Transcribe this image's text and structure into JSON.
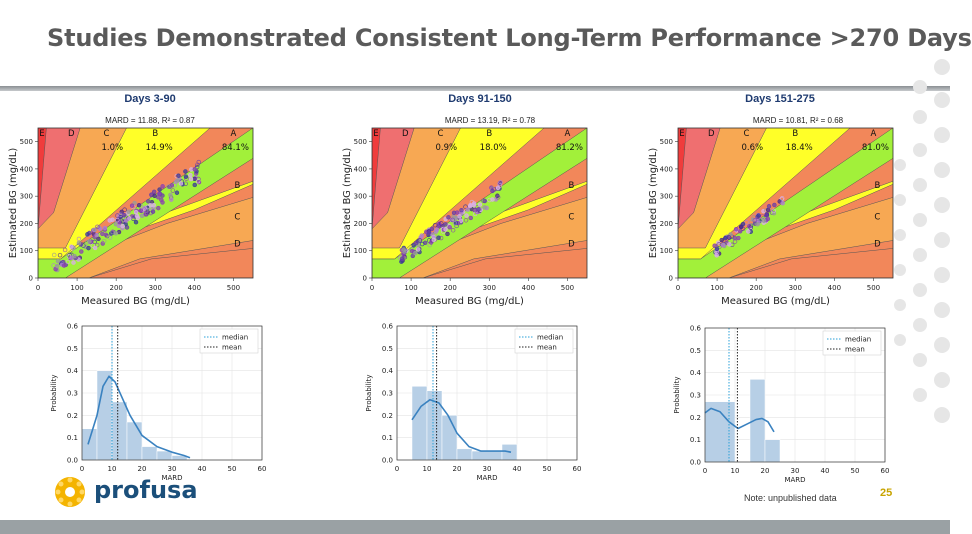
{
  "slide": {
    "title": "Studies Demonstrated Consistent Long-Term Performance >270 Days",
    "note": "Note: unpublished data",
    "page_number": "25",
    "logo_text": "profusa",
    "colors": {
      "title": "#5a5a5a",
      "panel_title": "#1f3b70",
      "page_number": "#c8a400",
      "logo": "#1b4f7a"
    }
  },
  "chart_data": [
    {
      "type": "scatter",
      "title": "Days 3-90",
      "subtitle": "MARD = 11.88, R² = 0.87",
      "xlabel": "Measured BG (mg/dL)",
      "ylabel": "Estimated BG (mg/dL)",
      "xlim": [
        0,
        550
      ],
      "ylim": [
        0,
        550
      ],
      "xticks": [
        0,
        100,
        200,
        300,
        400,
        500
      ],
      "yticks": [
        0,
        100,
        200,
        300,
        400,
        500
      ],
      "zones": {
        "labels_left": [
          "E",
          "D",
          "C",
          "B",
          "A"
        ],
        "labels_right": [
          "B",
          "C",
          "D"
        ],
        "percent": {
          "C": "1.0%",
          "B": "14.9%",
          "A": "84.1%"
        }
      },
      "point_spread": {
        "x_range": [
          40,
          420
        ],
        "slope": 0.92,
        "noise": 38,
        "count": 190
      }
    },
    {
      "type": "scatter",
      "title": "Days 91-150",
      "subtitle": "MARD = 13.19, R² = 0.78",
      "xlabel": "Measured BG (mg/dL)",
      "ylabel": "Estimated BG (mg/dL)",
      "xlim": [
        0,
        550
      ],
      "ylim": [
        0,
        550
      ],
      "xticks": [
        0,
        100,
        200,
        300,
        400,
        500
      ],
      "yticks": [
        0,
        100,
        200,
        300,
        400,
        500
      ],
      "zones": {
        "labels_left": [
          "E",
          "D",
          "C",
          "B",
          "A"
        ],
        "labels_right": [
          "B",
          "C",
          "D"
        ],
        "percent": {
          "C": "0.9%",
          "B": "18.0%",
          "A": "81.2%"
        }
      },
      "point_spread": {
        "x_range": [
          70,
          330
        ],
        "slope": 0.95,
        "noise": 32,
        "count": 130
      }
    },
    {
      "type": "scatter",
      "title": "Days 151-275",
      "subtitle": "MARD = 10.81, R² = 0.68",
      "xlabel": "Measured BG (mg/dL)",
      "ylabel": "Estimated BG (mg/dL)",
      "xlim": [
        0,
        550
      ],
      "ylim": [
        0,
        550
      ],
      "xticks": [
        0,
        100,
        200,
        300,
        400,
        500
      ],
      "yticks": [
        0,
        100,
        200,
        300,
        400,
        500
      ],
      "zones": {
        "labels_left": [
          "E",
          "D",
          "C",
          "B",
          "A"
        ],
        "labels_right": [
          "B",
          "C",
          "D"
        ],
        "percent": {
          "C": "0.6%",
          "B": "18.4%",
          "A": "81.0%"
        }
      },
      "point_spread": {
        "x_range": [
          90,
          270
        ],
        "slope": 0.98,
        "noise": 25,
        "count": 80
      }
    },
    {
      "type": "bar",
      "xlabel": "MARD",
      "ylabel": "Probability",
      "xlim": [
        0,
        60
      ],
      "ylim": [
        0,
        0.6
      ],
      "xticks": [
        0,
        10,
        20,
        30,
        40,
        50,
        60
      ],
      "yticks": [
        0.0,
        0.1,
        0.2,
        0.3,
        0.4,
        0.5,
        0.6
      ],
      "bins": [
        [
          0,
          5,
          0.14
        ],
        [
          5,
          10,
          0.4
        ],
        [
          10,
          15,
          0.26
        ],
        [
          15,
          20,
          0.17
        ],
        [
          20,
          25,
          0.06
        ],
        [
          25,
          30,
          0.04
        ],
        [
          30,
          35,
          0.02
        ],
        [
          35,
          40,
          0.0
        ]
      ],
      "kde": [
        [
          2,
          0.07
        ],
        [
          5,
          0.2
        ],
        [
          7,
          0.33
        ],
        [
          9,
          0.375
        ],
        [
          11,
          0.35
        ],
        [
          13,
          0.29
        ],
        [
          16,
          0.2
        ],
        [
          20,
          0.11
        ],
        [
          25,
          0.06
        ],
        [
          30,
          0.035
        ],
        [
          34,
          0.02
        ],
        [
          36,
          0.01
        ]
      ],
      "median": 10,
      "mean": 11.9,
      "legend": [
        "median",
        "mean"
      ]
    },
    {
      "type": "bar",
      "xlabel": "MARD",
      "ylabel": "Probability",
      "xlim": [
        0,
        60
      ],
      "ylim": [
        0,
        0.6
      ],
      "xticks": [
        0,
        10,
        20,
        30,
        40,
        50,
        60
      ],
      "yticks": [
        0.0,
        0.1,
        0.2,
        0.3,
        0.4,
        0.5,
        0.6
      ],
      "bins": [
        [
          5,
          10,
          0.33
        ],
        [
          10,
          15,
          0.31
        ],
        [
          15,
          20,
          0.2
        ],
        [
          20,
          25,
          0.05
        ],
        [
          25,
          35,
          0.04
        ],
        [
          35,
          40,
          0.07
        ]
      ],
      "kde": [
        [
          5,
          0.18
        ],
        [
          8,
          0.24
        ],
        [
          11,
          0.27
        ],
        [
          14,
          0.255
        ],
        [
          17,
          0.2
        ],
        [
          20,
          0.12
        ],
        [
          24,
          0.06
        ],
        [
          28,
          0.04
        ],
        [
          32,
          0.04
        ],
        [
          36,
          0.04
        ],
        [
          38,
          0.035
        ]
      ],
      "median": 12,
      "mean": 13.2,
      "legend": [
        "median",
        "mean"
      ]
    },
    {
      "type": "bar",
      "xlabel": "MARD",
      "ylabel": "Probability",
      "xlim": [
        0,
        60
      ],
      "ylim": [
        0,
        0.6
      ],
      "xticks": [
        0,
        10,
        20,
        30,
        40,
        50,
        60
      ],
      "yticks": [
        0.0,
        0.1,
        0.2,
        0.3,
        0.4,
        0.5,
        0.6
      ],
      "bins": [
        [
          0,
          10,
          0.27
        ],
        [
          10,
          15,
          0.0
        ],
        [
          15,
          20,
          0.37
        ],
        [
          20,
          25,
          0.1
        ]
      ],
      "kde": [
        [
          0,
          0.22
        ],
        [
          2,
          0.24
        ],
        [
          5,
          0.225
        ],
        [
          8,
          0.18
        ],
        [
          11,
          0.15
        ],
        [
          14,
          0.17
        ],
        [
          17,
          0.19
        ],
        [
          19,
          0.195
        ],
        [
          21,
          0.18
        ],
        [
          23,
          0.135
        ]
      ],
      "median": 8,
      "mean": 10.8,
      "legend": [
        "median",
        "mean"
      ]
    }
  ]
}
